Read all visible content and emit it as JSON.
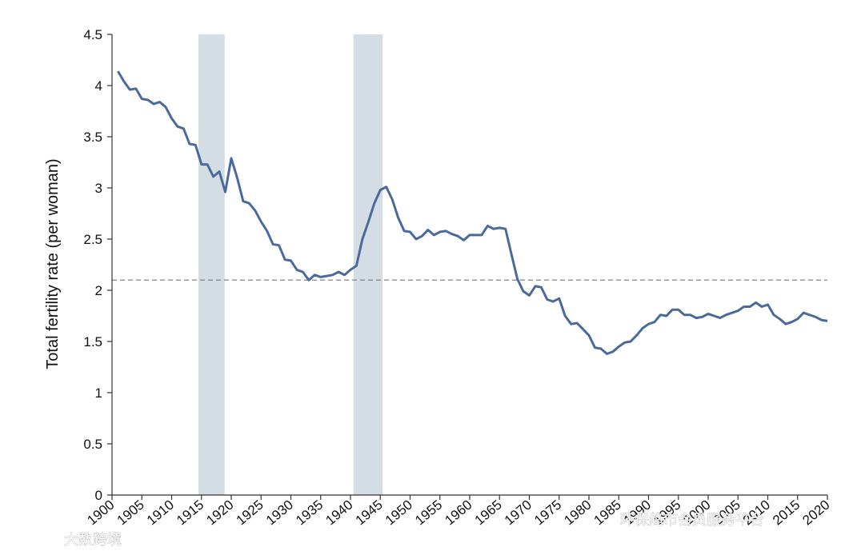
{
  "chart_data": {
    "type": "line",
    "ylabel": "Total fertility rate (per woman)",
    "xlabel": "",
    "xlim": [
      1900,
      2020
    ],
    "ylim": [
      0,
      4.5
    ],
    "x_ticks": [
      "1900",
      "1905",
      "1910",
      "1915",
      "1920",
      "1925",
      "1930",
      "1935",
      "1940",
      "1945",
      "1950",
      "1955",
      "1960",
      "1965",
      "1970",
      "1975",
      "1980",
      "1985",
      "1990",
      "1995",
      "2000",
      "2005",
      "2010",
      "2015",
      "2020"
    ],
    "y_ticks": [
      "0",
      "0.5",
      "1",
      "1.5",
      "2",
      "2.5",
      "3",
      "3.5",
      "4",
      "4.5"
    ],
    "reference_line": {
      "y": 2.1,
      "style": "dashed"
    },
    "shaded_periods": [
      {
        "start": 1914.5,
        "end": 1918.9
      },
      {
        "start": 1940.5,
        "end": 1945.4
      }
    ],
    "grid": false,
    "colors": {
      "line": "#4a6a9e",
      "shade": "#d5dde4",
      "reference": "#777777",
      "axis": "#333333"
    },
    "series": [
      {
        "x": [
          1901,
          1902,
          1903,
          1904,
          1905,
          1906,
          1907,
          1908,
          1909,
          1910,
          1911,
          1912,
          1913,
          1914,
          1915,
          1916,
          1917,
          1918,
          1919,
          1920,
          1921,
          1922,
          1923,
          1924,
          1925,
          1926,
          1927,
          1928,
          1929,
          1930,
          1931,
          1932,
          1933,
          1934,
          1935,
          1936,
          1937,
          1938,
          1939,
          1940,
          1941,
          1942,
          1943,
          1944,
          1945,
          1946,
          1947,
          1948,
          1949,
          1950,
          1951,
          1952,
          1953,
          1954,
          1955,
          1956,
          1957,
          1958,
          1959,
          1960,
          1961,
          1962,
          1963,
          1964,
          1965,
          1966,
          1967,
          1968,
          1969,
          1970,
          1971,
          1972,
          1973,
          1974,
          1975,
          1976,
          1977,
          1978,
          1979,
          1980,
          1981,
          1982,
          1983,
          1984,
          1985,
          1986,
          1987,
          1988,
          1989,
          1990,
          1991,
          1992,
          1993,
          1994,
          1995,
          1996,
          1997,
          1998,
          1999,
          2000,
          2001,
          2002,
          2003,
          2004,
          2005,
          2006,
          2007,
          2008,
          2009,
          2010,
          2011,
          2012,
          2013,
          2014,
          2015,
          2016,
          2017,
          2018,
          2019,
          2020
        ],
        "values": [
          4.14,
          4.04,
          3.96,
          3.97,
          3.87,
          3.86,
          3.82,
          3.84,
          3.79,
          3.68,
          3.6,
          3.58,
          3.43,
          3.42,
          3.23,
          3.23,
          3.11,
          3.16,
          2.96,
          3.29,
          3.1,
          2.87,
          2.85,
          2.78,
          2.67,
          2.58,
          2.45,
          2.44,
          2.3,
          2.29,
          2.2,
          2.18,
          2.1,
          2.15,
          2.13,
          2.14,
          2.15,
          2.18,
          2.15,
          2.2,
          2.24,
          2.5,
          2.67,
          2.85,
          2.98,
          3.01,
          2.89,
          2.71,
          2.58,
          2.57,
          2.5,
          2.53,
          2.59,
          2.54,
          2.57,
          2.58,
          2.55,
          2.53,
          2.49,
          2.54,
          2.54,
          2.54,
          2.63,
          2.6,
          2.61,
          2.6,
          2.35,
          2.11,
          1.99,
          1.95,
          2.04,
          2.03,
          1.91,
          1.89,
          1.92,
          1.75,
          1.67,
          1.68,
          1.62,
          1.56,
          1.44,
          1.43,
          1.38,
          1.4,
          1.45,
          1.49,
          1.5,
          1.56,
          1.63,
          1.67,
          1.69,
          1.76,
          1.75,
          1.81,
          1.81,
          1.76,
          1.76,
          1.73,
          1.74,
          1.77,
          1.75,
          1.73,
          1.76,
          1.78,
          1.8,
          1.84,
          1.84,
          1.88,
          1.84,
          1.86,
          1.76,
          1.72,
          1.67,
          1.69,
          1.72,
          1.78,
          1.76,
          1.74,
          1.71,
          1.7
        ]
      }
    ]
  },
  "watermarks": [
    "大数跨境",
    "环保趋市会员服务平台"
  ]
}
